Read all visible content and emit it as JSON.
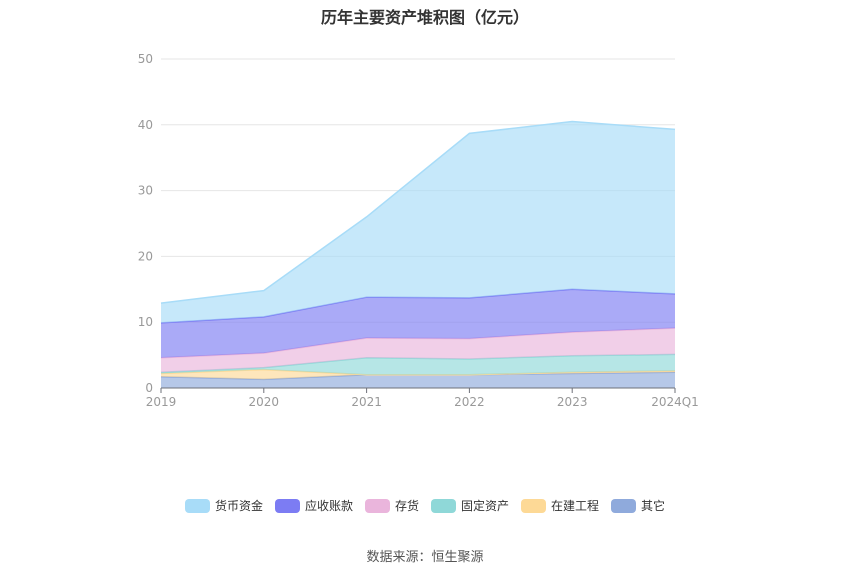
{
  "chart_data": {
    "type": "area",
    "stacked": true,
    "title": "历年主要资产堆积图（亿元）",
    "categories": [
      "2019",
      "2020",
      "2021",
      "2022",
      "2023",
      "2024Q1"
    ],
    "ylim": [
      0,
      50
    ],
    "yticks": [
      0,
      10,
      20,
      30,
      40,
      50
    ],
    "grid": true,
    "legend_position": "bottom",
    "series": [
      {
        "name": "其它",
        "color": "#8faadc",
        "values": [
          1.7,
          1.3,
          2.0,
          2.0,
          2.2,
          2.4
        ]
      },
      {
        "name": "在建工程",
        "color": "#fdd996",
        "values": [
          0.5,
          1.5,
          0.0,
          0.0,
          0.2,
          0.2
        ]
      },
      {
        "name": "固定资产",
        "color": "#8fd8d8",
        "values": [
          0.2,
          0.3,
          2.6,
          2.4,
          2.5,
          2.5
        ]
      },
      {
        "name": "存货",
        "color": "#eab5dc",
        "values": [
          2.2,
          2.2,
          3.0,
          3.1,
          3.6,
          4.0
        ]
      },
      {
        "name": "应收账款",
        "color": "#7c7cf3",
        "values": [
          5.3,
          5.5,
          6.2,
          6.2,
          6.5,
          5.2
        ]
      },
      {
        "name": "货币资金",
        "color": "#a8dcf8",
        "values": [
          3.0,
          4.0,
          12.2,
          25.0,
          25.5,
          25.0
        ]
      }
    ]
  },
  "legend_order": [
    "货币资金",
    "应收账款",
    "存货",
    "固定资产",
    "在建工程",
    "其它"
  ],
  "source_text": "数据来源：恒生聚源"
}
